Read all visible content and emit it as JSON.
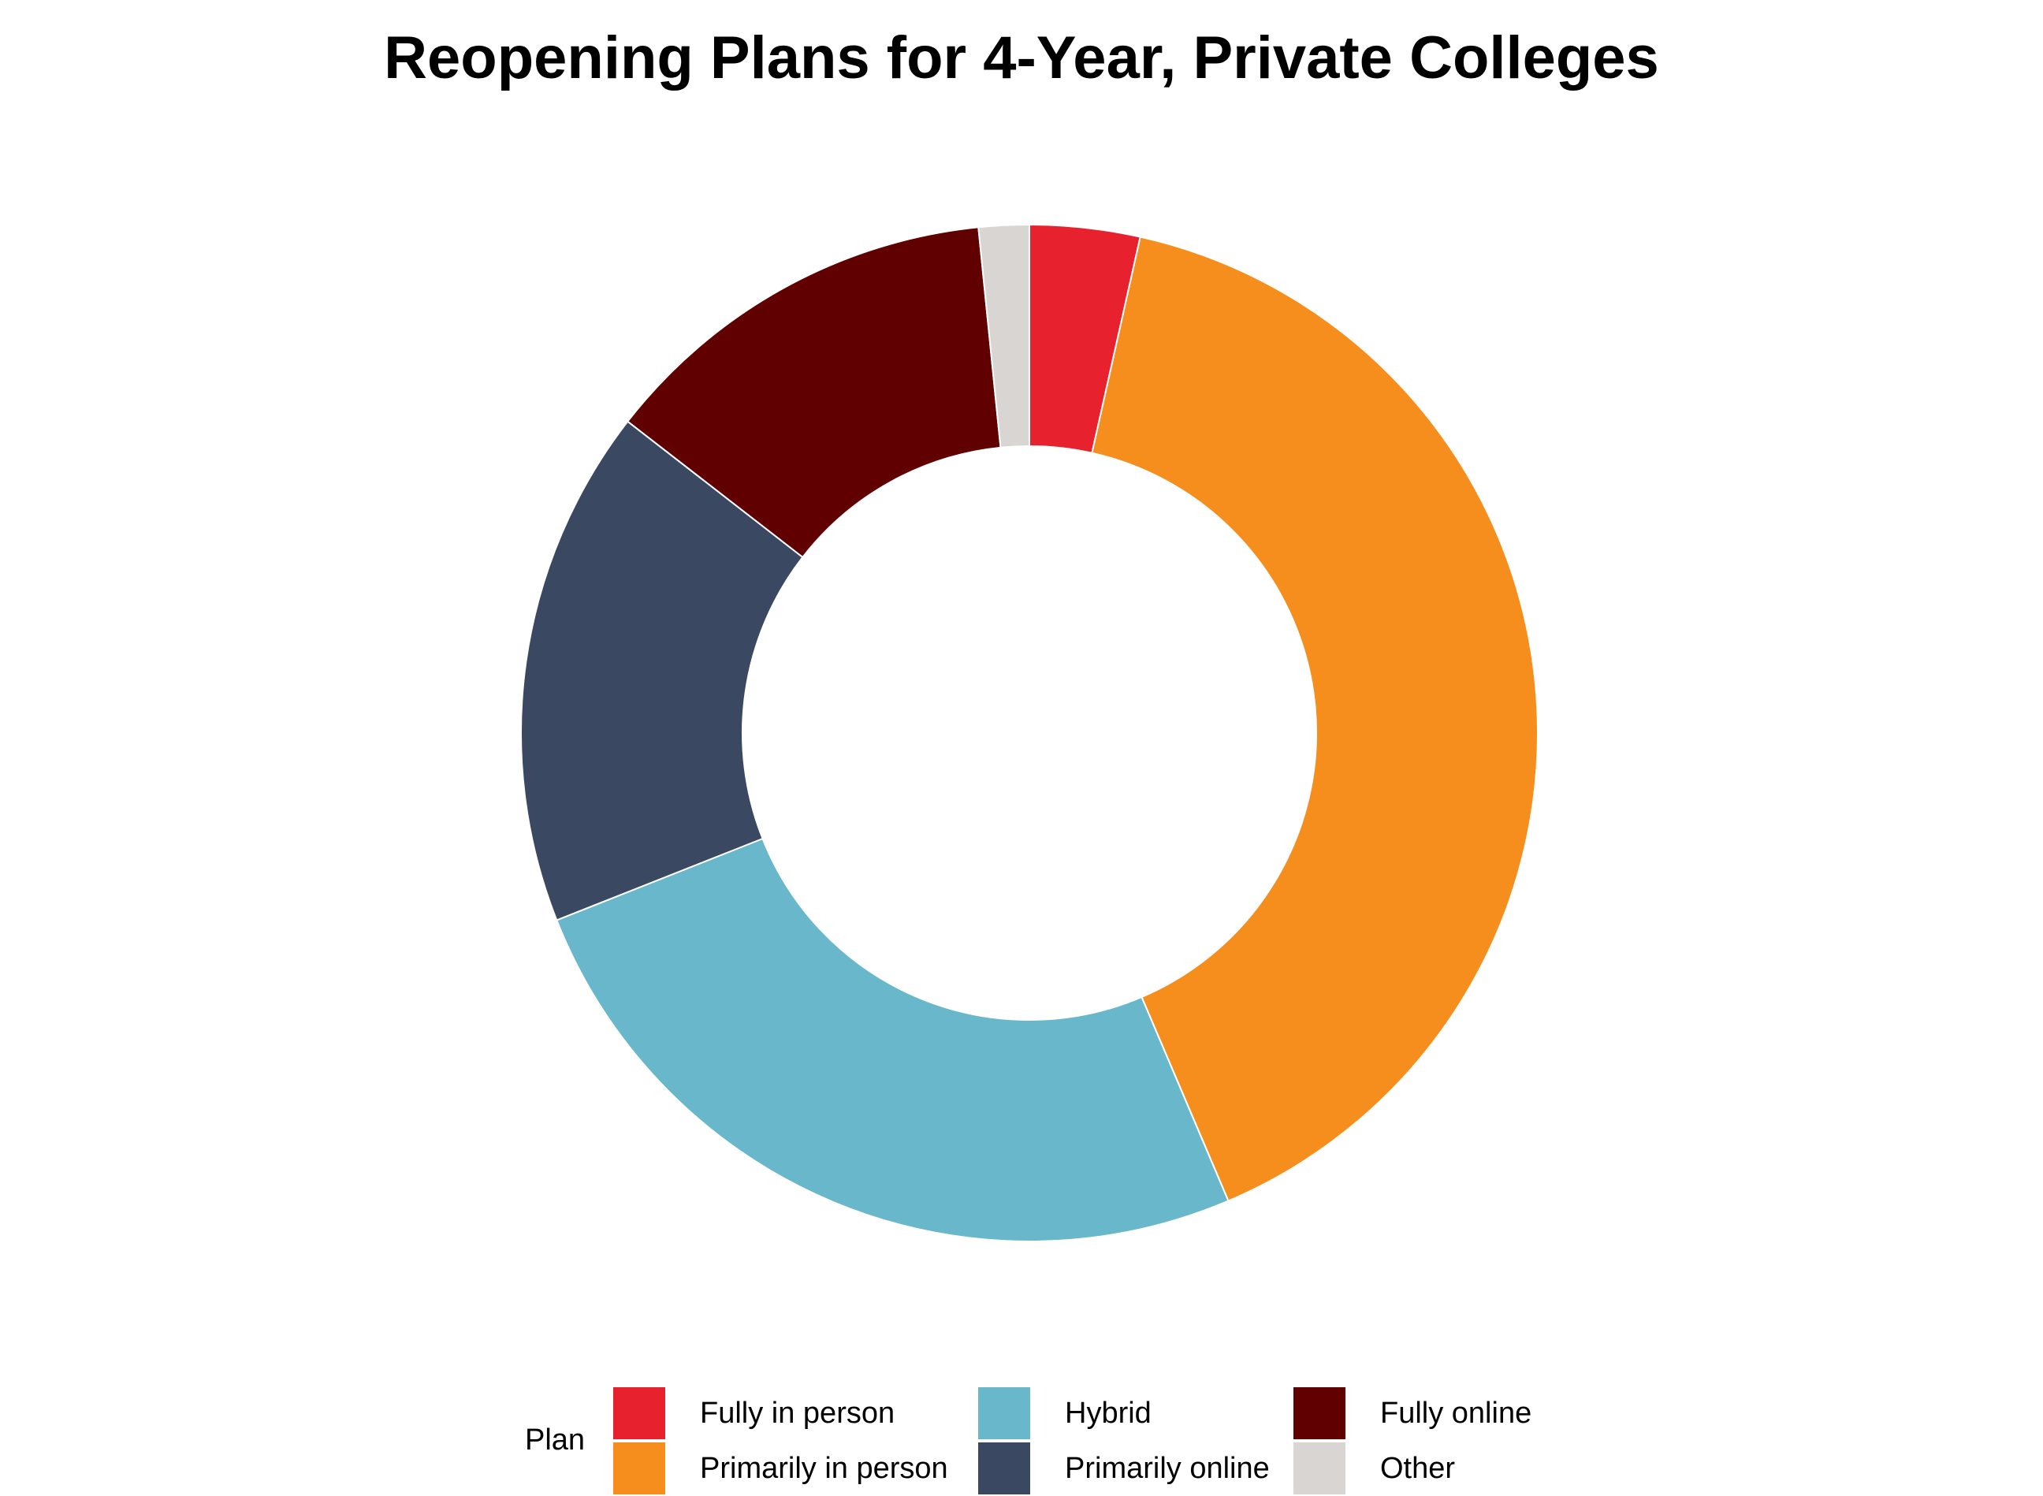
{
  "chart_data": {
    "type": "pie",
    "subtype": "donut",
    "title": "Reopening Plans for 4-Year, Private Colleges",
    "legend": {
      "title": "Plan",
      "placement": "bottom",
      "columns": 3,
      "entries": [
        "Fully in person",
        "Primarily in person",
        "Hybrid",
        "Primarily online",
        "Fully online",
        "Other"
      ]
    },
    "slices": [
      {
        "label": "Fully in person",
        "value": 3.5,
        "color": "#E8212E"
      },
      {
        "label": "Primarily in person",
        "value": 40.1,
        "color": "#F58E1C"
      },
      {
        "label": "Hybrid",
        "value": 25.4,
        "color": "#68B7CB"
      },
      {
        "label": "Primarily online",
        "value": 16.5,
        "color": "#3B4862"
      },
      {
        "label": "Fully online",
        "value": 12.9,
        "color": "#600000"
      },
      {
        "label": "Other",
        "value": 1.6,
        "color": "#D9D5D2"
      }
    ],
    "order_note": "clockwise from top, ending at Other",
    "units": "percent"
  }
}
